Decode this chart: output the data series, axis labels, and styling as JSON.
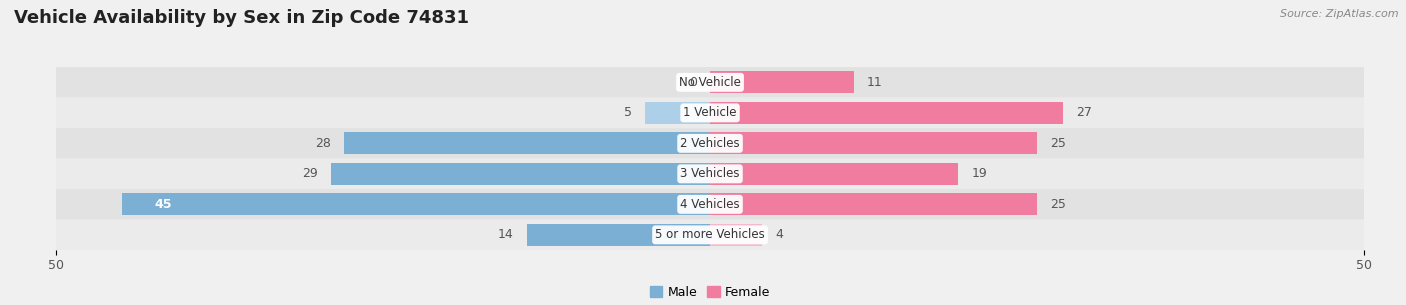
{
  "title": "Vehicle Availability by Sex in Zip Code 74831",
  "source": "Source: ZipAtlas.com",
  "categories": [
    "No Vehicle",
    "1 Vehicle",
    "2 Vehicles",
    "3 Vehicles",
    "4 Vehicles",
    "5 or more Vehicles"
  ],
  "male_values": [
    0,
    5,
    28,
    29,
    45,
    14
  ],
  "female_values": [
    11,
    27,
    25,
    19,
    25,
    4
  ],
  "male_color": "#7bafd4",
  "female_color": "#f07ca0",
  "male_color_light": "#aecfe8",
  "female_color_light": "#f5b8cc",
  "axis_max": 50,
  "background_color": "#f0f0f0",
  "row_color_dark": "#e2e2e2",
  "row_color_light": "#ebebeb",
  "legend_male": "Male",
  "legend_female": "Female",
  "title_fontsize": 13,
  "value_fontsize": 9,
  "cat_fontsize": 8.5
}
